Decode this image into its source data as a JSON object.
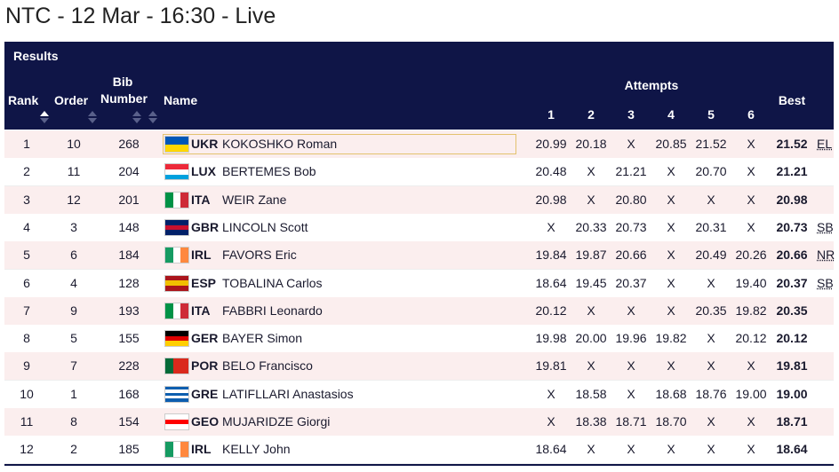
{
  "header": {
    "title": "NTC - 12 Mar - 16:30 - Live"
  },
  "table": {
    "label": "Results",
    "columns": {
      "rank": "Rank",
      "order": "Order",
      "bib": "Bib Number",
      "name": "Name",
      "attempts": "Attempts",
      "attempt_numbers": [
        "1",
        "2",
        "3",
        "4",
        "5",
        "6"
      ],
      "best": "Best"
    },
    "rows": [
      {
        "rank": "1",
        "order": "10",
        "bib": "268",
        "country": "UKR",
        "name": "KOKOSHKO Roman",
        "attempts": [
          "20.99",
          "20.18",
          "X",
          "20.85",
          "21.52",
          "X"
        ],
        "best": "21.52",
        "note": "EL",
        "flag": {
          "dir": "h",
          "colors": [
            "#0057b7",
            "#ffd700"
          ]
        }
      },
      {
        "rank": "2",
        "order": "11",
        "bib": "204",
        "country": "LUX",
        "name": "BERTEMES Bob",
        "attempts": [
          "20.48",
          "X",
          "21.21",
          "X",
          "20.70",
          "X"
        ],
        "best": "21.21",
        "flag": {
          "dir": "h",
          "colors": [
            "#ed2939",
            "#ffffff",
            "#00a1de"
          ]
        }
      },
      {
        "rank": "3",
        "order": "12",
        "bib": "201",
        "country": "ITA",
        "name": "WEIR Zane",
        "attempts": [
          "20.98",
          "X",
          "20.80",
          "X",
          "X",
          "X"
        ],
        "best": "20.98",
        "flag": {
          "dir": "v",
          "colors": [
            "#009246",
            "#ffffff",
            "#ce2b37"
          ]
        }
      },
      {
        "rank": "4",
        "order": "3",
        "bib": "148",
        "country": "GBR",
        "name": "LINCOLN Scott",
        "attempts": [
          "X",
          "20.33",
          "20.73",
          "X",
          "20.31",
          "X"
        ],
        "best": "20.73",
        "note": "SB",
        "flag": {
          "dir": "h",
          "colors": [
            "#012169",
            "#c8102e",
            "#012169"
          ]
        }
      },
      {
        "rank": "5",
        "order": "6",
        "bib": "184",
        "country": "IRL",
        "name": "FAVORS Eric",
        "attempts": [
          "19.84",
          "19.87",
          "20.66",
          "X",
          "20.49",
          "20.26"
        ],
        "best": "20.66",
        "note": "NR",
        "flag": {
          "dir": "v",
          "colors": [
            "#169b62",
            "#ffffff",
            "#ff883e"
          ]
        }
      },
      {
        "rank": "6",
        "order": "4",
        "bib": "128",
        "country": "ESP",
        "name": "TOBALINA Carlos",
        "attempts": [
          "18.64",
          "19.45",
          "20.37",
          "X",
          "X",
          "19.40"
        ],
        "best": "20.37",
        "note": "SB",
        "flag": {
          "dir": "h",
          "colors": [
            "#aa151b",
            "#f1bf00",
            "#aa151b"
          ]
        }
      },
      {
        "rank": "7",
        "order": "9",
        "bib": "193",
        "country": "ITA",
        "name": "FABBRI Leonardo",
        "attempts": [
          "20.12",
          "X",
          "X",
          "X",
          "20.35",
          "19.82"
        ],
        "best": "20.35",
        "flag": {
          "dir": "v",
          "colors": [
            "#009246",
            "#ffffff",
            "#ce2b37"
          ]
        }
      },
      {
        "rank": "8",
        "order": "5",
        "bib": "155",
        "country": "GER",
        "name": "BAYER Simon",
        "attempts": [
          "19.98",
          "20.00",
          "19.96",
          "19.82",
          "X",
          "20.12"
        ],
        "best": "20.12",
        "flag": {
          "dir": "h",
          "colors": [
            "#000000",
            "#dd0000",
            "#ffce00"
          ]
        }
      },
      {
        "rank": "9",
        "order": "7",
        "bib": "228",
        "country": "POR",
        "name": "BELO Francisco",
        "attempts": [
          "19.81",
          "X",
          "X",
          "X",
          "X",
          "X"
        ],
        "best": "19.81",
        "flag": {
          "dir": "v",
          "colors": [
            "#046a38",
            "#da291c",
            "#da291c"
          ]
        }
      },
      {
        "rank": "10",
        "order": "1",
        "bib": "168",
        "country": "GRE",
        "name": "LATIFLLARI Anastasios",
        "attempts": [
          "X",
          "18.58",
          "X",
          "18.68",
          "18.76",
          "19.00"
        ],
        "best": "19.00",
        "flag": {
          "dir": "h",
          "colors": [
            "#0d5eaf",
            "#ffffff",
            "#0d5eaf",
            "#ffffff",
            "#0d5eaf"
          ]
        }
      },
      {
        "rank": "11",
        "order": "8",
        "bib": "154",
        "country": "GEO",
        "name": "MUJARIDZE Giorgi",
        "attempts": [
          "X",
          "18.38",
          "18.71",
          "18.70",
          "X",
          "X"
        ],
        "best": "18.71",
        "flag": {
          "dir": "h",
          "colors": [
            "#ffffff",
            "#ff0000",
            "#ffffff"
          ]
        }
      },
      {
        "rank": "12",
        "order": "2",
        "bib": "185",
        "country": "IRL",
        "name": "KELLY John",
        "attempts": [
          "18.64",
          "X",
          "X",
          "X",
          "X",
          "X"
        ],
        "best": "18.64",
        "flag": {
          "dir": "v",
          "colors": [
            "#169b62",
            "#ffffff",
            "#ff883e"
          ]
        }
      }
    ]
  }
}
